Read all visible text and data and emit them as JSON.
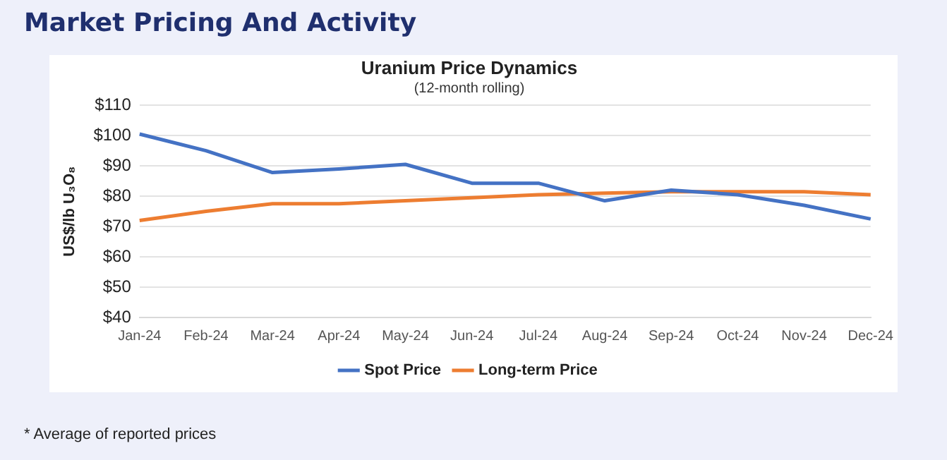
{
  "chart_data": {
    "type": "line",
    "title": "Uranium Price Dynamics",
    "subtitle": "(12-month rolling)",
    "ylabel": "US$/lb U₃O₈",
    "annotations": [
      "Market Pricing And Activity",
      "* Average of reported prices"
    ],
    "categories": [
      "Jan-24",
      "Feb-24",
      "Mar-24",
      "Apr-24",
      "May-24",
      "Jun-24",
      "Jul-24",
      "Aug-24",
      "Sep-24",
      "Oct-24",
      "Nov-24",
      "Dec-24"
    ],
    "series": [
      {
        "name": "Spot Price",
        "color": "#4472c4",
        "values": [
          100.5,
          95,
          87.8,
          89,
          90.5,
          84.3,
          84.3,
          78.5,
          82,
          80.5,
          77,
          72.5
        ]
      },
      {
        "name": "Long-term Price",
        "color": "#ed7d31",
        "values": [
          72,
          75,
          77.5,
          77.5,
          78.5,
          79.5,
          80.5,
          81,
          81.5,
          81.5,
          81.5,
          80.5
        ]
      }
    ],
    "ylim": [
      40,
      110
    ],
    "yticks": [
      {
        "value": 40,
        "label": "$40"
      },
      {
        "value": 50,
        "label": "$50"
      },
      {
        "value": 60,
        "label": "$60"
      },
      {
        "value": 70,
        "label": "$70"
      },
      {
        "value": 80,
        "label": "$80"
      },
      {
        "value": 90,
        "label": "$90"
      },
      {
        "value": 100,
        "label": "$100"
      },
      {
        "value": 110,
        "label": "$110"
      }
    ],
    "grid": "y",
    "legend": "bottom",
    "marker": "none",
    "line_style": "solid"
  }
}
